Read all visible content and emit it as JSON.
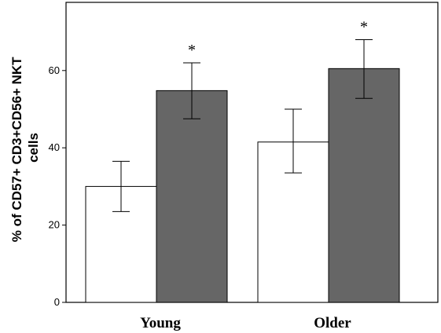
{
  "chart_data": {
    "type": "bar",
    "categories": [
      "Young",
      "Older"
    ],
    "ylabel_lines": [
      "% of CD57+ CD3+CD56+ NKT",
      "cells"
    ],
    "ylim": [
      0,
      76
    ],
    "yticks": [
      0,
      20,
      40,
      60
    ],
    "grid": false,
    "colors": [
      "#ffffff",
      "#666666"
    ],
    "series": [
      {
        "values": [
          30,
          41.5
        ],
        "err_low": [
          23.5,
          33.5
        ],
        "err_high": [
          36.5,
          50
        ]
      },
      {
        "values": [
          54.8,
          60.5
        ],
        "err_low": [
          47.5,
          52.8
        ],
        "err_high": [
          62,
          68
        ]
      }
    ],
    "annotations": [
      {
        "series": 1,
        "category": 0,
        "text": "*"
      },
      {
        "series": 1,
        "category": 1,
        "text": "*"
      }
    ]
  }
}
